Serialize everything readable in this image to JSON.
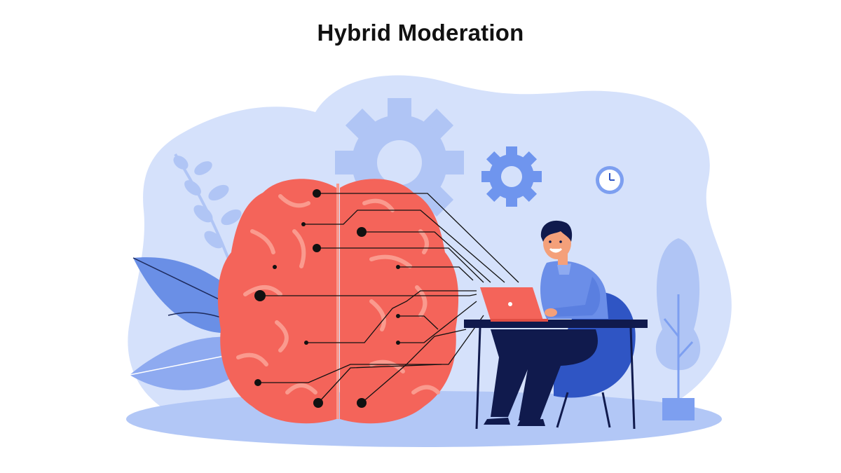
{
  "page": {
    "title": "Hybrid Moderation"
  },
  "illustration": {
    "elements": [
      "brain-icon",
      "gear-icon",
      "clock-icon",
      "laptop-icon",
      "plant-icon",
      "leaf-icon",
      "person"
    ],
    "colors": {
      "background_blob": "#d5e1fb",
      "brain": "#f4645a",
      "brain_highlight": "#fa9a8e",
      "gear_large": "#b0c5f5",
      "gear_small": "#6f95ee",
      "leaves": "#6a8fe6",
      "sweater": "#6b8ee8",
      "chair": "#2f55c4",
      "pants": "#101a4d",
      "laptop": "#f4645a",
      "floor": "#b2c7f6"
    }
  }
}
